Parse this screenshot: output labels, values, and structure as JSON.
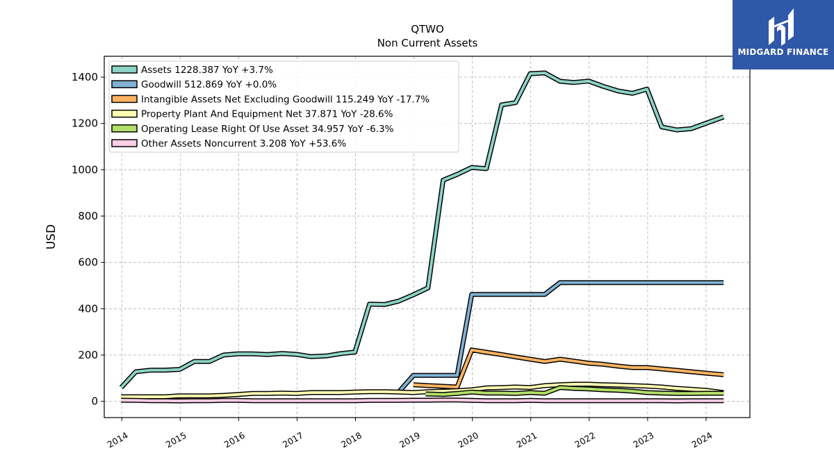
{
  "brand": {
    "name": "MIDGARD FINANCE",
    "background_color": "#2f58a8",
    "icon": "midgard-logo-icon"
  },
  "chart_data": {
    "type": "area",
    "title": "QTWO",
    "subtitle": "Non Current  Assets",
    "ylabel": "USD",
    "xlabel": "",
    "xlim": [
      2013.7,
      2024.75
    ],
    "ylim": [
      -70,
      1490
    ],
    "grid": true,
    "legend_position": "top-left",
    "x_ticks": [
      "2014",
      "2015",
      "2016",
      "2017",
      "2018",
      "2019",
      "2020",
      "2021",
      "2022",
      "2023",
      "2024"
    ],
    "y_ticks": [
      0,
      200,
      400,
      600,
      800,
      1000,
      1200,
      1400
    ],
    "series": [
      {
        "name": "Assets",
        "legend_label": "Assets  1228.387 YoY +3.7%",
        "color": "#8dd3c7",
        "x": [
          2013.99,
          2014.24,
          2014.5,
          2014.74,
          2014.99,
          2015.24,
          2015.5,
          2015.74,
          2015.99,
          2016.24,
          2016.5,
          2016.74,
          2016.99,
          2017.24,
          2017.5,
          2017.74,
          2017.99,
          2018.24,
          2018.5,
          2018.74,
          2018.99,
          2019.24,
          2019.5,
          2019.74,
          2019.99,
          2020.24,
          2020.5,
          2020.74,
          2020.99,
          2021.24,
          2021.5,
          2021.74,
          2021.99,
          2022.24,
          2022.5,
          2022.74,
          2022.99,
          2023.24,
          2023.5,
          2023.74,
          2023.99,
          2024.3
        ],
        "values": [
          60,
          128,
          135,
          135,
          138,
          172,
          172,
          200,
          205,
          205,
          202,
          207,
          203,
          193,
          196,
          206,
          213,
          420,
          418,
          433,
          460,
          490,
          955,
          980,
          1010,
          1005,
          1280,
          1290,
          1415,
          1418,
          1382,
          1377,
          1383,
          1360,
          1340,
          1330,
          1348,
          1185,
          1172,
          1177,
          1200,
          1228
        ]
      },
      {
        "name": "Goodwill",
        "legend_label": "Goodwill  512.869 YoY +0.0%",
        "color": "#80b1d3",
        "x": [
          2018.74,
          2018.99,
          2019.24,
          2019.5,
          2019.74,
          2019.99,
          2020.24,
          2020.5,
          2020.74,
          2020.99,
          2021.24,
          2021.5,
          2021.74,
          2021.99,
          2022.24,
          2022.5,
          2022.74,
          2022.99,
          2023.24,
          2023.5,
          2023.74,
          2023.99,
          2024.3
        ],
        "values": [
          40,
          112,
          112,
          112,
          112,
          462,
          462,
          462,
          462,
          462,
          462,
          513,
          513,
          513,
          513,
          513,
          513,
          513,
          513,
          513,
          513,
          513,
          513
        ]
      },
      {
        "name": "Intangible Assets Net Excluding Goodwill",
        "legend_label": "Intangible Assets Net Excluding Goodwill  115.249 YoY -17.7%",
        "color": "#fdb462",
        "x": [
          2018.99,
          2019.24,
          2019.5,
          2019.74,
          2019.99,
          2020.24,
          2020.5,
          2020.74,
          2020.99,
          2021.24,
          2021.5,
          2021.74,
          2021.99,
          2022.24,
          2022.5,
          2022.74,
          2022.99,
          2023.24,
          2023.5,
          2023.74,
          2023.99,
          2024.3
        ],
        "values": [
          72,
          68,
          65,
          62,
          222,
          212,
          202,
          192,
          182,
          172,
          182,
          174,
          165,
          160,
          152,
          146,
          146,
          140,
          134,
          128,
          122,
          115
        ]
      },
      {
        "name": "Property Plant And Equipment Net",
        "legend_label": "Property Plant And Equipment Net  37.871 YoY -28.6%",
        "color": "#ffffb3",
        "x": [
          2013.99,
          2014.24,
          2014.5,
          2014.74,
          2014.99,
          2015.24,
          2015.5,
          2015.74,
          2015.99,
          2016.24,
          2016.5,
          2016.74,
          2016.99,
          2017.24,
          2017.5,
          2017.74,
          2017.99,
          2018.24,
          2018.5,
          2018.74,
          2018.99,
          2019.24,
          2019.5,
          2019.74,
          2019.99,
          2020.24,
          2020.5,
          2020.74,
          2020.99,
          2021.24,
          2021.5,
          2021.74,
          2021.99,
          2022.24,
          2022.5,
          2022.74,
          2022.99,
          2023.24,
          2023.5,
          2023.74,
          2023.99,
          2024.3
        ],
        "values": [
          20,
          20,
          20,
          20,
          24,
          24,
          24,
          26,
          30,
          34,
          34,
          36,
          34,
          38,
          38,
          38,
          40,
          42,
          42,
          40,
          38,
          42,
          44,
          46,
          50,
          58,
          60,
          62,
          60,
          68,
          72,
          74,
          74,
          72,
          70,
          68,
          66,
          62,
          56,
          52,
          48,
          38
        ]
      },
      {
        "name": "Operating Lease Right Of Use Asset",
        "legend_label": "Operating Lease Right Of Use Asset  34.957 YoY -6.3%",
        "color": "#b3de69",
        "x": [
          2019.2,
          2019.5,
          2019.74,
          2019.99,
          2020.24,
          2020.5,
          2020.74,
          2020.99,
          2021.24,
          2021.5,
          2021.74,
          2021.99,
          2022.24,
          2022.5,
          2022.74,
          2022.99,
          2023.24,
          2023.5,
          2023.74,
          2023.99,
          2024.3
        ],
        "values": [
          32,
          30,
          34,
          40,
          36,
          36,
          34,
          38,
          35,
          60,
          56,
          54,
          50,
          48,
          44,
          38,
          36,
          34,
          34,
          35,
          35
        ]
      },
      {
        "name": "Other Assets Noncurrent",
        "legend_label": "Other Assets Noncurrent  3.208 YoY +53.6%",
        "color": "#fccde5",
        "x": [
          2013.99,
          2014.24,
          2014.5,
          2014.74,
          2014.99,
          2015.24,
          2015.5,
          2015.74,
          2015.99,
          2016.24,
          2016.5,
          2016.74,
          2016.99,
          2017.24,
          2017.5,
          2017.74,
          2017.99,
          2018.24,
          2018.5,
          2018.74,
          2018.99,
          2019.24,
          2019.5,
          2019.74,
          2019.99,
          2020.24,
          2020.5,
          2020.74,
          2020.99,
          2021.24,
          2021.5,
          2021.74,
          2021.99,
          2022.24,
          2022.5,
          2022.74,
          2022.99,
          2023.24,
          2023.5,
          2023.74,
          2023.99,
          2024.3
        ],
        "values": [
          5,
          4,
          3,
          3,
          2,
          3,
          3,
          4,
          4,
          3,
          3,
          3,
          3,
          3,
          3,
          3,
          3,
          4,
          4,
          4,
          5,
          5,
          6,
          6,
          4,
          3,
          3,
          3,
          4,
          3,
          3,
          3,
          3,
          3,
          3,
          3,
          3,
          3,
          2,
          3,
          3,
          3
        ]
      }
    ]
  }
}
